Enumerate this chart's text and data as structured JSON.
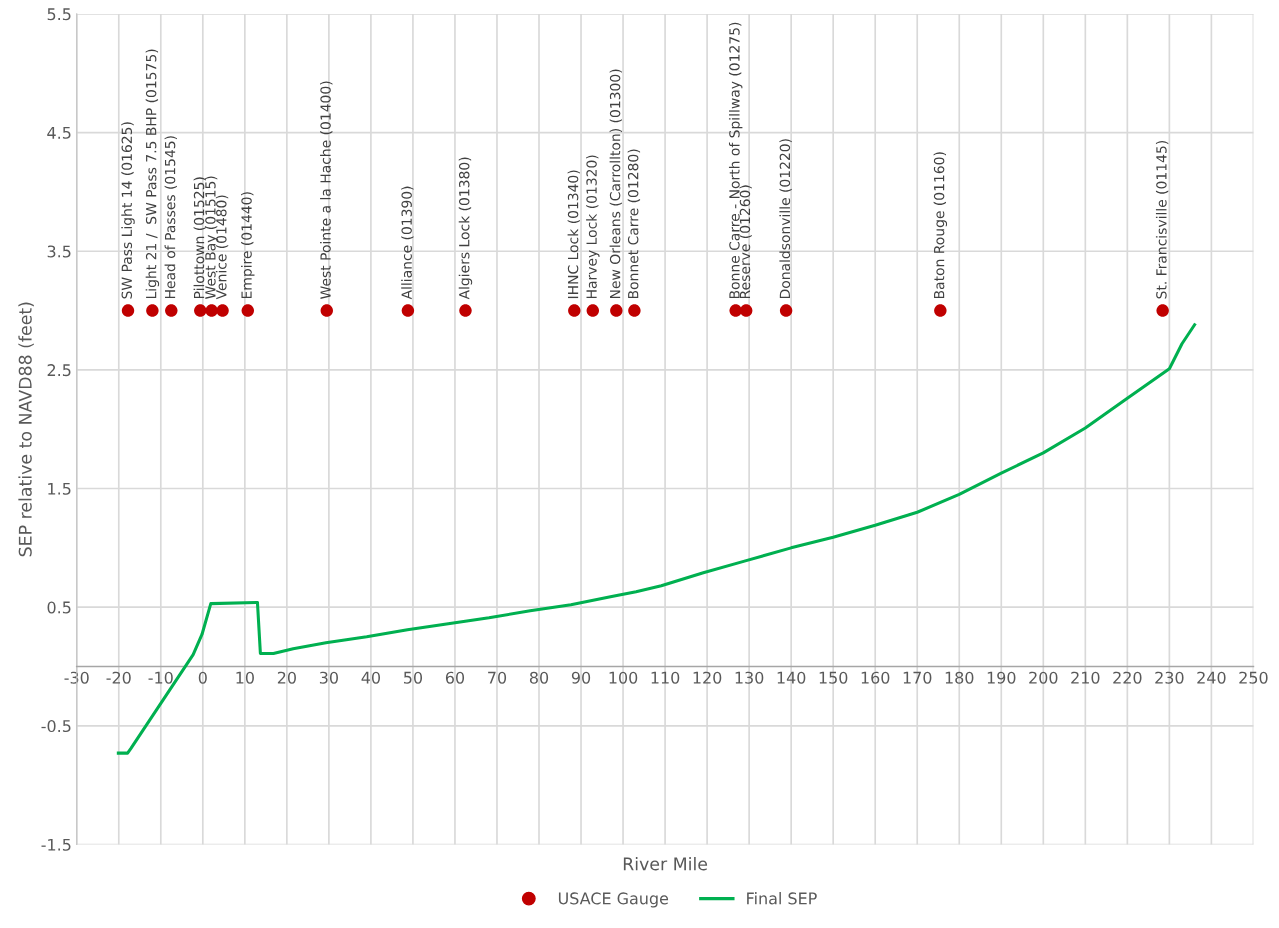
{
  "chart_data": {
    "type": "line",
    "xlabel": "River Mile",
    "ylabel": "SEP relative to NAVD88 (feet)",
    "xlim": [
      -30,
      250
    ],
    "xticks": [
      -30,
      -20,
      -10,
      0,
      10,
      20,
      30,
      40,
      50,
      60,
      70,
      80,
      90,
      100,
      110,
      120,
      130,
      140,
      150,
      160,
      170,
      180,
      190,
      200,
      210,
      220,
      230,
      240,
      250
    ],
    "ylim": [
      -1.5,
      5.5
    ],
    "yticks": [
      -1.5,
      -0.5,
      0.5,
      1.5,
      2.5,
      3.5,
      4.5,
      5.5
    ],
    "grid": true,
    "legend": "bottom",
    "series": [
      {
        "name": "USACE Gauge",
        "type": "scatter",
        "color": "#c00000",
        "marker": "circle",
        "x": [
          -17.8,
          -12.0,
          -7.5,
          -0.6,
          2.1,
          4.7,
          10.7,
          29.5,
          48.8,
          62.5,
          88.4,
          92.8,
          98.4,
          102.7,
          126.8,
          129.3,
          138.8,
          175.5,
          228.4
        ],
        "values": [
          3,
          3,
          3,
          3,
          3,
          3,
          3,
          3,
          3,
          3,
          3,
          3,
          3,
          3,
          3,
          3,
          3,
          3,
          3
        ]
      },
      {
        "name": "Final SEP",
        "color": "#00b050",
        "marker": "none",
        "line_style": "solid",
        "x": [
          -20.1,
          -17.9,
          -17.1,
          -2.3,
          -0.2,
          1.9,
          13.0,
          13.7,
          16.8,
          21.5,
          29.3,
          39.0,
          48.7,
          58.4,
          68.1,
          77.9,
          87.6,
          97.3,
          103.1,
          109.1,
          119.1,
          129.1,
          140,
          150,
          160,
          170,
          180,
          190,
          200,
          210,
          220,
          230,
          233,
          236
        ],
        "values": [
          -0.73,
          -0.73,
          -0.69,
          0.1,
          0.27,
          0.53,
          0.54,
          0.11,
          0.11,
          0.15,
          0.2,
          0.25,
          0.31,
          0.36,
          0.41,
          0.47,
          0.52,
          0.59,
          0.63,
          0.68,
          0.79,
          0.89,
          1.0,
          1.09,
          1.19,
          1.3,
          1.45,
          1.63,
          1.8,
          2.01,
          2.26,
          2.51,
          2.72,
          2.88
        ]
      }
    ],
    "annotations": [
      {
        "text": "SW Pass Light 14 (01625)",
        "x": -17.8,
        "y": 3
      },
      {
        "text": "Light 21 /  SW Pass 7.5 BHP (01575)",
        "x": -12.0,
        "y": 3
      },
      {
        "text": "Head of Passes (01545)",
        "x": -7.5,
        "y": 3
      },
      {
        "text": "Pilottown (01525)",
        "x": -0.6,
        "y": 3
      },
      {
        "text": "West Bay (01515)",
        "x": 2.1,
        "y": 3
      },
      {
        "text": "Venice (01480)",
        "x": 4.7,
        "y": 3
      },
      {
        "text": "Empire (01440)",
        "x": 10.7,
        "y": 3
      },
      {
        "text": "West Pointe a la Hache (01400)",
        "x": 29.5,
        "y": 3
      },
      {
        "text": "Alliance (01390)",
        "x": 48.8,
        "y": 3
      },
      {
        "text": "Algiers Lock (01380)",
        "x": 62.5,
        "y": 3
      },
      {
        "text": "IHNC Lock (01340)",
        "x": 88.4,
        "y": 3
      },
      {
        "text": "Harvey Lock (01320)",
        "x": 92.8,
        "y": 3
      },
      {
        "text": "New Orleans (Carrollton) (01300)",
        "x": 98.4,
        "y": 3
      },
      {
        "text": "Bonnet Carre (01280)",
        "x": 102.7,
        "y": 3
      },
      {
        "text": "Bonne Carre - North of Spillway (01275)",
        "x": 126.8,
        "y": 3
      },
      {
        "text": "Reserve (01260)",
        "x": 129.3,
        "y": 3
      },
      {
        "text": "Donaldsonville (01220)",
        "x": 138.8,
        "y": 3
      },
      {
        "text": "Baton Rouge (01160)",
        "x": 175.5,
        "y": 3
      },
      {
        "text": "St. Francisville (01145)",
        "x": 228.4,
        "y": 3
      }
    ]
  }
}
